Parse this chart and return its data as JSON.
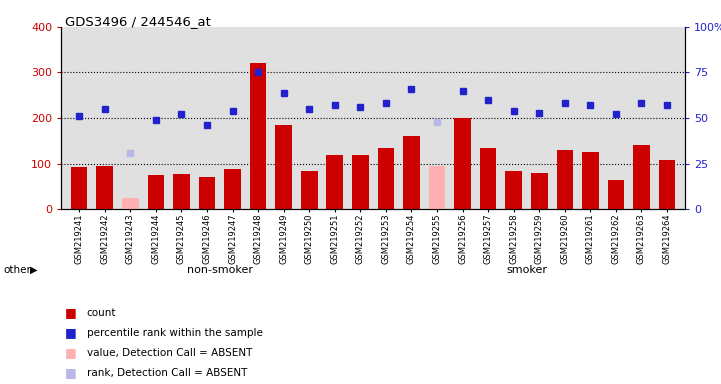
{
  "title": "GDS3496 / 244546_at",
  "samples": [
    "GSM219241",
    "GSM219242",
    "GSM219243",
    "GSM219244",
    "GSM219245",
    "GSM219246",
    "GSM219247",
    "GSM219248",
    "GSM219249",
    "GSM219250",
    "GSM219251",
    "GSM219252",
    "GSM219253",
    "GSM219254",
    "GSM219255",
    "GSM219256",
    "GSM219257",
    "GSM219258",
    "GSM219259",
    "GSM219260",
    "GSM219261",
    "GSM219262",
    "GSM219263",
    "GSM219264"
  ],
  "bar_values": [
    93,
    95,
    25,
    75,
    78,
    70,
    88,
    320,
    185,
    85,
    118,
    120,
    135,
    160,
    95,
    200,
    135,
    85,
    80,
    130,
    125,
    65,
    140,
    108
  ],
  "bar_absent": [
    false,
    false,
    true,
    false,
    false,
    false,
    false,
    false,
    false,
    false,
    false,
    false,
    false,
    false,
    true,
    false,
    false,
    false,
    false,
    false,
    false,
    false,
    false,
    false
  ],
  "rank_values": [
    51,
    55,
    31,
    49,
    52,
    46,
    54,
    75,
    64,
    55,
    57,
    56,
    58,
    66,
    48,
    65,
    60,
    54,
    53,
    58,
    57,
    52,
    58,
    57
  ],
  "rank_absent": [
    false,
    false,
    true,
    false,
    false,
    false,
    false,
    false,
    false,
    false,
    false,
    false,
    false,
    false,
    true,
    false,
    false,
    false,
    false,
    false,
    false,
    false,
    false,
    false
  ],
  "non_smoker_count": 12,
  "bar_color": "#cc0000",
  "bar_absent_color": "#ffb0b0",
  "rank_color": "#2222cc",
  "rank_absent_color": "#b8b8e8",
  "left_ylim": [
    0,
    400
  ],
  "right_ylim": [
    0,
    100
  ],
  "left_yticks": [
    0,
    100,
    200,
    300,
    400
  ],
  "right_yticks": [
    0,
    25,
    50,
    75,
    100
  ],
  "right_yticklabels": [
    "0",
    "25",
    "50",
    "75",
    "100%"
  ],
  "grid_lines": [
    100,
    200,
    300
  ],
  "bg_color": "#e0e0e0",
  "non_smoker_bg": "#b0e0b0",
  "smoker_bg": "#50d050",
  "separator_color": "#505050"
}
